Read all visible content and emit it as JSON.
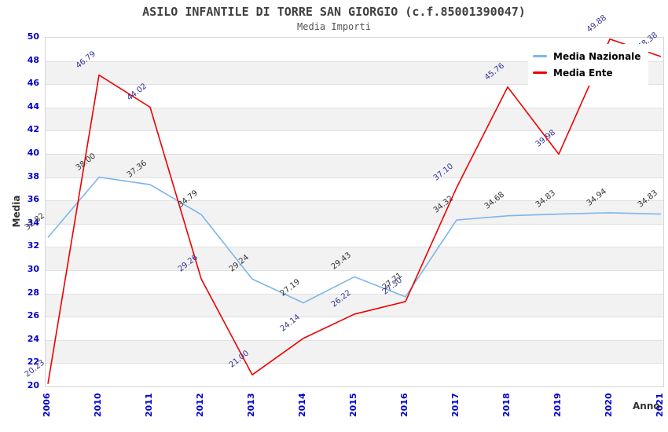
{
  "header": {
    "title": "ASILO INFANTILE DI TORRE SAN GIORGIO (c.f.85001390047)",
    "subtitle": "Media Importi"
  },
  "axes": {
    "ylabel": "Media",
    "xlabel": "Anno"
  },
  "legend": {
    "items": [
      {
        "label": "Media Nazionale",
        "color": "#7cb5ec"
      },
      {
        "label": "Media Ente",
        "color": "#ee0000"
      }
    ]
  },
  "chart_data": {
    "type": "line",
    "title": "ASILO INFANTILE DI TORRE SAN GIORGIO (c.f.85001390047)",
    "subtitle": "Media Importi",
    "xlabel": "Anno",
    "ylabel": "Media",
    "categories": [
      "2006",
      "2010",
      "2011",
      "2012",
      "2013",
      "2014",
      "2015",
      "2016",
      "2017",
      "2018",
      "2019",
      "2020",
      "2021"
    ],
    "series": [
      {
        "name": "Media Nazionale",
        "color": "#7cb5ec",
        "label_color": "#333333",
        "values": [
          32.82,
          38.0,
          37.36,
          34.79,
          29.24,
          27.19,
          29.43,
          27.71,
          34.32,
          34.68,
          34.83,
          34.94,
          34.83
        ],
        "labels": [
          "32.82",
          "38.00",
          "37.36",
          "34.79",
          "29.24",
          "27.19",
          "29.43",
          "27.71",
          "34.32",
          "34.68",
          "34.83",
          "34.94",
          "34.83"
        ]
      },
      {
        "name": "Media Ente",
        "color": "#ee0000",
        "label_color": "#333399",
        "values": [
          20.23,
          46.79,
          44.02,
          29.26,
          21.0,
          24.14,
          26.22,
          27.3,
          37.1,
          45.76,
          39.98,
          49.88,
          48.38
        ],
        "labels": [
          "20.23",
          "46.79",
          "44.02",
          "29.26",
          "21.00",
          "24.14",
          "26.22",
          "27.30",
          "37.10",
          "45.76",
          "39.98",
          "49.88",
          "48.38"
        ]
      }
    ],
    "ylim": [
      20,
      50
    ],
    "ytick_step": 2,
    "grid": "horizontal-bands",
    "legend_position": "top-right",
    "colors": {
      "axis_tick_label": "#0000cc",
      "axis_title": "#333333",
      "band_alt": "#f2f2f2",
      "gridline": "#e0e0e0",
      "title": "#404040"
    }
  }
}
